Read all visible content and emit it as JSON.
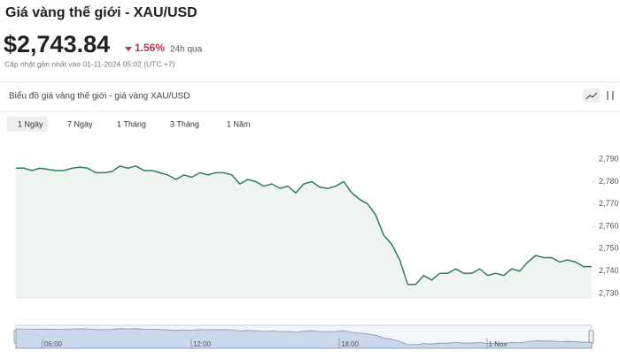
{
  "header": {
    "title": "Giá vàng thế giới - XAU/USD",
    "price": "$2,743.84",
    "change": "1.56%",
    "period": "24h qua",
    "updated": "Cập nhật gần nhất vào 01-11-2024 05:02 (UTC +7)"
  },
  "panel": {
    "title": "Biểu đồ giá vàng thế giới - giá vàng XAU/USD",
    "tabs": [
      "1 Ngày",
      "7 Ngày",
      "1 Tháng",
      "3 Tháng",
      "1 Năm"
    ],
    "active_tab": 0
  },
  "chart_data": {
    "type": "line",
    "color": "#2e7d5b",
    "fill": "#eef5f0",
    "values": [
      2786,
      2786,
      2785,
      2786,
      2785.5,
      2785,
      2785,
      2786,
      2786.5,
      2786,
      2784,
      2784,
      2784.5,
      2787,
      2786,
      2787,
      2785,
      2785,
      2784,
      2783,
      2781,
      2783,
      2782,
      2784,
      2783,
      2784,
      2784,
      2783,
      2779,
      2781,
      2780,
      2778,
      2779,
      2777,
      2778,
      2775,
      2779,
      2780,
      2777.5,
      2777,
      2778,
      2780,
      2775,
      2772,
      2770,
      2765,
      2756,
      2752,
      2745,
      2734,
      2734,
      2738,
      2736,
      2739,
      2739,
      2741,
      2739,
      2739,
      2741,
      2738,
      2739,
      2738,
      2741,
      2740,
      2744,
      2747,
      2746,
      2746,
      2744,
      2745,
      2744,
      2742,
      2742
    ],
    "ylim": [
      2728,
      2798
    ],
    "yticks": [
      {
        "value": 2730,
        "label": "2,730"
      },
      {
        "value": 2740,
        "label": "2,740"
      },
      {
        "value": 2750,
        "label": "2,750"
      },
      {
        "value": 2760,
        "label": "2,760"
      },
      {
        "value": 2770,
        "label": "2,770"
      },
      {
        "value": 2780,
        "label": "2,780"
      },
      {
        "value": 2790,
        "label": "2,790"
      }
    ],
    "navigator_labels": [
      "06:00",
      "12:00",
      "18:00",
      "1 Nov"
    ]
  }
}
